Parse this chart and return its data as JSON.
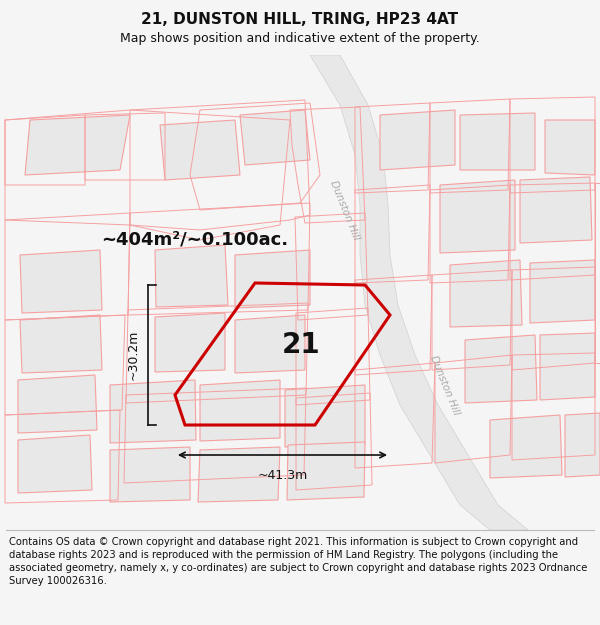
{
  "title": "21, DUNSTON HILL, TRING, HP23 4AT",
  "subtitle": "Map shows position and indicative extent of the property.",
  "footer": "Contains OS data © Crown copyright and database right 2021. This information is subject to Crown copyright and database rights 2023 and is reproduced with the permission of HM Land Registry. The polygons (including the associated geometry, namely x, y co-ordinates) are subject to Crown copyright and database rights 2023 Ordnance Survey 100026316.",
  "area_label": "~404m²/~0.100ac.",
  "plot_number": "21",
  "dim_width": "~41.3m",
  "dim_height": "~30.2m",
  "bg_color": "#f5f5f5",
  "map_bg": "#ffffff",
  "road_label_1": "Dunston Hill",
  "road_label_2": "Dunston Hill",
  "highlight_color": "#cc0000",
  "dim_color": "#111111",
  "title_fontsize": 11,
  "subtitle_fontsize": 9,
  "footer_fontsize": 7.2,
  "area_fontsize": 13,
  "plot_num_fontsize": 20,
  "parcel_fill": "#e8e8e8",
  "parcel_stroke": "#cccccc",
  "outline_color": "#f5a0a0",
  "road_fill": "#e0e0e0"
}
